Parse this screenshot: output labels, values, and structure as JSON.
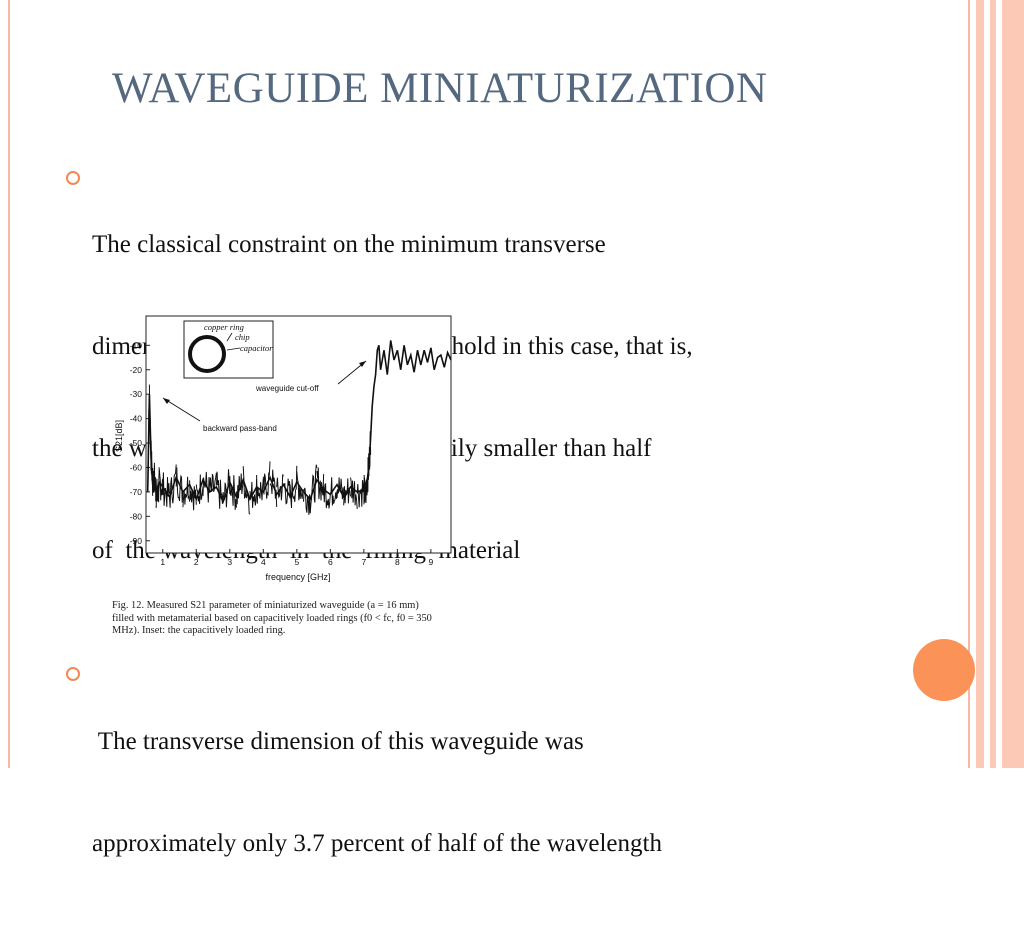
{
  "slide": {
    "title": "WAVEGUIDE MINIATURIZATION",
    "bullet1": {
      "lines": [
        "The classical constraint on the minimum transverse",
        "dimension of a waveguide does not hold in this case, that is,",
        "the waveguide width can be arbitrarily smaller than half",
        "of  the wavelength  in  the  filling  material"
      ]
    },
    "bullet2": {
      "lines": [
        " The transverse dimension of this waveguide was",
        "approximately only 3.7 percent of half of the wavelength"
      ]
    },
    "colors": {
      "title": "#54687f",
      "accent": "#f28a55",
      "stripe": "#fbc9b6",
      "circle": "#fb9358"
    }
  },
  "figure": {
    "caption_line1": "Fig. 12.    Measured S21 parameter of miniaturized waveguide (a = 16 mm)",
    "caption_line2": "filled with metamaterial based on capacitively loaded rings (f0 < fc, f0 = 350",
    "caption_line3": "MHz). Inset: the capacitively loaded ring.",
    "inset_labels": {
      "ring": "copper ring",
      "chip": "chip",
      "capacitor": "capacitor"
    },
    "annotations": {
      "cutoff": "waveguide cut-off",
      "passband": "backward pass-band"
    }
  },
  "chart_data": {
    "type": "line",
    "xlabel": "frequency [GHz]",
    "ylabel": "S21[dB]",
    "xlim": [
      0.5,
      9.6
    ],
    "ylim": [
      -95,
      2
    ],
    "xticks": [
      1,
      2,
      3,
      4,
      5,
      6,
      7,
      8,
      9
    ],
    "yticks": [
      -10,
      -20,
      -30,
      -40,
      -50,
      -60,
      -70,
      -80,
      -90
    ],
    "series": [
      {
        "x": [
          0.55,
          0.6,
          0.65,
          0.7,
          0.75,
          0.8,
          0.85,
          0.9,
          1.0,
          1.2,
          1.4,
          1.6,
          1.8,
          2.0,
          2.2,
          2.4,
          2.6,
          2.8,
          3.0,
          3.2,
          3.4,
          3.6,
          3.8,
          4.0,
          4.2,
          4.4,
          4.6,
          4.8,
          5.0,
          5.2,
          5.4,
          5.6,
          5.8,
          6.0,
          6.2,
          6.4,
          6.6,
          6.8,
          7.0,
          7.05,
          7.1,
          7.15,
          7.2,
          7.25,
          7.3,
          7.35,
          7.4,
          7.45,
          7.5,
          7.55,
          7.6,
          7.7,
          7.8,
          7.9,
          8.0,
          8.1,
          8.2,
          8.3,
          8.4,
          8.5,
          8.6,
          8.7,
          8.8,
          8.9,
          9.0,
          9.1,
          9.2,
          9.3,
          9.4,
          9.5,
          9.6
        ],
        "y": [
          -70,
          -30,
          -55,
          -67,
          -64,
          -70,
          -72,
          -66,
          -68,
          -72,
          -64,
          -70,
          -67,
          -73,
          -65,
          -70,
          -68,
          -74,
          -66,
          -72,
          -65,
          -73,
          -68,
          -70,
          -64,
          -71,
          -67,
          -72,
          -66,
          -70,
          -73,
          -65,
          -69,
          -71,
          -67,
          -72,
          -68,
          -70,
          -69,
          -72,
          -65,
          -60,
          -48,
          -35,
          -27,
          -22,
          -12,
          -10,
          -20,
          -16,
          -12,
          -22,
          -8,
          -16,
          -12,
          -20,
          -10,
          -18,
          -14,
          -21,
          -12,
          -18,
          -12,
          -17,
          -11,
          -20,
          -15,
          -14,
          -19,
          -13,
          -16
        ]
      }
    ]
  }
}
